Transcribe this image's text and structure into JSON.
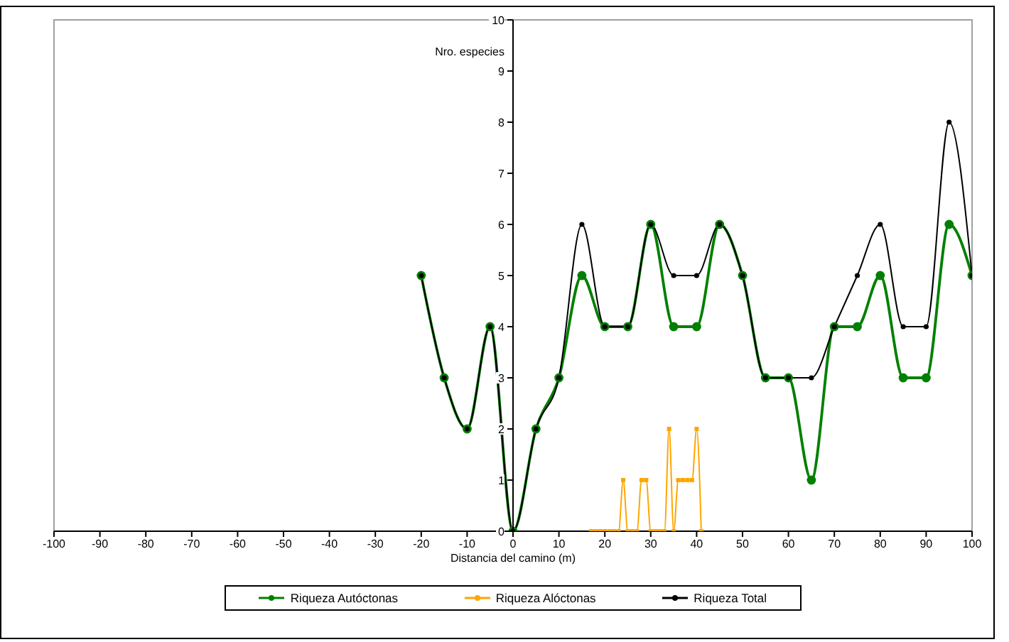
{
  "chart_data": {
    "type": "line",
    "xlabel": "Distancia del camino (m)",
    "ylabel": "Nro. especies",
    "xlim": [
      -100,
      100
    ],
    "xticks": [
      -100,
      -90,
      -80,
      -70,
      -60,
      -50,
      -40,
      -30,
      -20,
      -10,
      0,
      10,
      20,
      30,
      40,
      50,
      60,
      70,
      80,
      90,
      100
    ],
    "ylim": [
      0,
      10
    ],
    "yticks": [
      0,
      1,
      2,
      3,
      4,
      5,
      6,
      7,
      8,
      9,
      10
    ],
    "legend": "bottom",
    "marker": "circle",
    "series": [
      {
        "name": "Riqueza Autóctonas",
        "color": "#008000",
        "x": [
          -20,
          -15,
          -10,
          -5,
          0,
          5,
          10,
          15,
          20,
          25,
          30,
          35,
          40,
          45,
          50,
          55,
          60,
          65,
          70,
          75,
          80,
          85,
          90,
          95,
          100
        ],
        "values": [
          5,
          3,
          2,
          4,
          0,
          2,
          3,
          5,
          4,
          4,
          6,
          4,
          4,
          6,
          5,
          3,
          3,
          1,
          4,
          4,
          5,
          3,
          3,
          6,
          5
        ]
      },
      {
        "name": "Riqueza Alóctonas",
        "color": "#ffa500",
        "marker": "square",
        "x": [
          17,
          18,
          19,
          20,
          21,
          22,
          23,
          24,
          25,
          26,
          27,
          28,
          29,
          30,
          31,
          32,
          33,
          34,
          35,
          36,
          37,
          38,
          39,
          40,
          41
        ],
        "values": [
          0,
          0,
          0,
          0,
          0,
          0,
          0,
          1,
          0,
          0,
          0,
          1,
          1,
          0,
          0,
          0,
          0,
          2,
          0,
          1,
          1,
          1,
          1,
          2,
          0
        ]
      },
      {
        "name": "Riqueza Total",
        "color": "#000000",
        "x": [
          -20,
          -15,
          -10,
          -5,
          0,
          5,
          10,
          15,
          20,
          25,
          30,
          35,
          40,
          45,
          50,
          55,
          60,
          65,
          70,
          75,
          80,
          85,
          90,
          95,
          100
        ],
        "values": [
          5,
          3,
          2,
          4,
          0,
          2,
          3,
          6,
          4,
          4,
          6,
          5,
          5,
          6,
          5,
          3,
          3,
          3,
          4,
          5,
          6,
          4,
          4,
          8,
          5
        ]
      }
    ]
  }
}
